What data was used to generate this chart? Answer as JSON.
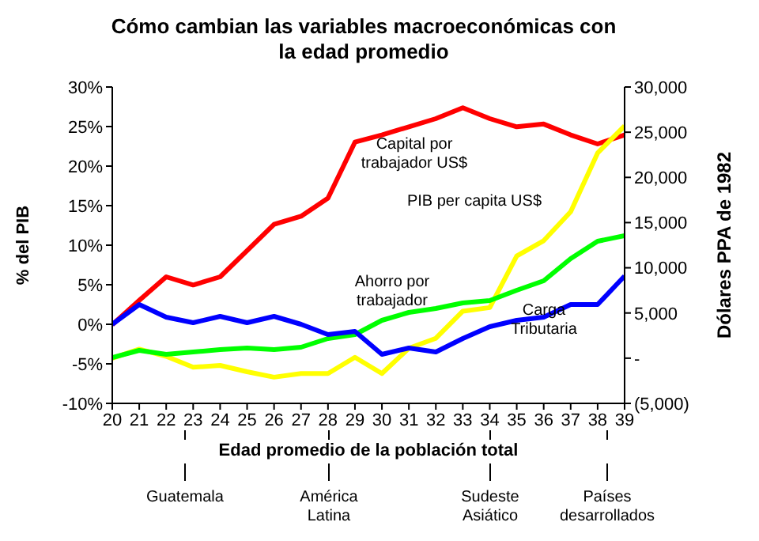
{
  "chart_data": {
    "type": "line",
    "title": "Cómo cambian las variables macroeconómicas con la edad promedio",
    "xlabel": "Edad promedio de la población total",
    "ylabel": "% del PIB",
    "y2label": "Dólares PPA de 1982",
    "x": [
      20,
      21,
      22,
      23,
      24,
      25,
      26,
      27,
      28,
      29,
      30,
      31,
      32,
      33,
      34,
      35,
      36,
      37,
      38,
      39
    ],
    "xlim": [
      20,
      39
    ],
    "xticks": [
      20,
      21,
      22,
      23,
      24,
      25,
      26,
      27,
      28,
      29,
      30,
      31,
      32,
      33,
      34,
      35,
      36,
      37,
      38,
      39
    ],
    "ylim": [
      -10,
      30
    ],
    "yticks": [
      {
        "value": -10,
        "label": "-10%"
      },
      {
        "value": -5,
        "label": "-5%"
      },
      {
        "value": 0,
        "label": "0%"
      },
      {
        "value": 5,
        "label": "5%"
      },
      {
        "value": 10,
        "label": "10%"
      },
      {
        "value": 15,
        "label": "15%"
      },
      {
        "value": 20,
        "label": "20%"
      },
      {
        "value": 25,
        "label": "25%"
      },
      {
        "value": 30,
        "label": "30%"
      }
    ],
    "y2lim": [
      -5000,
      30000
    ],
    "y2ticks": [
      {
        "value": -5000,
        "label": "(5,000)"
      },
      {
        "value": 0,
        "label": "-"
      },
      {
        "value": 5000,
        "label": "5,000"
      },
      {
        "value": 10000,
        "label": "10,000"
      },
      {
        "value": 15000,
        "label": "15,000"
      },
      {
        "value": 20000,
        "label": "20,000"
      },
      {
        "value": 25000,
        "label": "25,000"
      },
      {
        "value": 30000,
        "label": "30,000"
      }
    ],
    "series": [
      {
        "name": "Capital por trabajador US$",
        "color": "#ff0000",
        "axis": "y2",
        "values": [
          3700,
          6400,
          9000,
          8100,
          9000,
          11900,
          14800,
          15700,
          17700,
          23900,
          24700,
          25600,
          26500,
          27700,
          26500,
          25600,
          25900,
          24700,
          23700,
          24700
        ]
      },
      {
        "name": "PIB per capita US$",
        "color": "#ffff00",
        "axis": "y2",
        "values": [
          0,
          1000,
          200,
          -1000,
          -800,
          -1500,
          -2100,
          -1700,
          -1700,
          100,
          -1700,
          1100,
          2200,
          5200,
          5600,
          11300,
          13000,
          16200,
          22700,
          25700
        ]
      },
      {
        "name": "Ahorro por trabajador",
        "color": "#00ff00",
        "axis": "y",
        "values": [
          -4.2,
          -3.3,
          -3.8,
          -3.5,
          -3.2,
          -3.0,
          -3.2,
          -2.9,
          -1.8,
          -1.3,
          0.5,
          1.5,
          2.0,
          2.7,
          3.0,
          4.3,
          5.5,
          8.3,
          10.5,
          11.2
        ]
      },
      {
        "name": "Carga Tributaria",
        "color": "#0000ff",
        "axis": "y",
        "values": [
          0,
          2.5,
          0.9,
          0.2,
          1.0,
          0.2,
          1.0,
          0,
          -1.3,
          -0.9,
          -3.8,
          -3.0,
          -3.5,
          -1.8,
          -0.3,
          0.5,
          0.9,
          2.5,
          2.5,
          6.1
        ]
      }
    ],
    "annotations": [
      "Guatemala",
      "América Latina",
      "Sudeste Asiático",
      "Países desarrollados"
    ],
    "grid": false,
    "legend": false,
    "marker": "none",
    "line_style": "solid"
  }
}
